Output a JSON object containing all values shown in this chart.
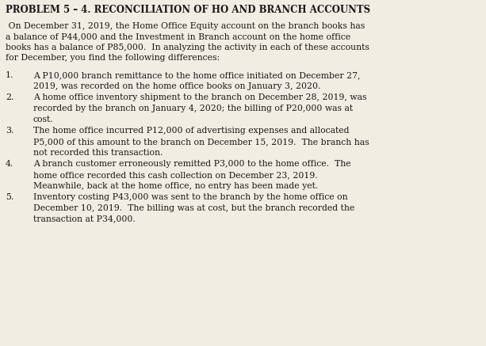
{
  "title": "PROBLEM 5 – 4. RECONCILIATION OF HO AND BRANCH ACCOUNTS",
  "background_color": "#f2ede3",
  "text_color": "#1a1a1a",
  "figsize": [
    6.13,
    4.37
  ],
  "dpi": 100,
  "title_fontsize": 8.5,
  "body_fontsize": 7.8,
  "intro_lines": [
    " On December 31, 2019, the Home Office Equity account on the branch books has",
    "a balance of P44,000 and the Investment in Branch account on the home office",
    "books has a balance of P85,000.  In analyzing the activity in each of these accounts",
    "for December, you find the following differences:"
  ],
  "items": [
    {
      "num": "1.",
      "lines": [
        "A P10,000 branch remittance to the home office initiated on December 27,",
        "2019, was recorded on the home office books on January 3, 2020."
      ]
    },
    {
      "num": "2.",
      "lines": [
        "A home office inventory shipment to the branch on December 28, 2019, was",
        "recorded by the branch on January 4, 2020; the billing of P20,000 was at",
        "cost."
      ]
    },
    {
      "num": "3.",
      "lines": [
        "The home office incurred P12,000 of advertising expenses and allocated",
        "P5,000 of this amount to the branch on December 15, 2019.  The branch has",
        "not recorded this transaction."
      ]
    },
    {
      "num": "4.",
      "lines": [
        "A branch customer erroneously remitted P3,000 to the home office.  The",
        "home office recorded this cash collection on December 23, 2019.",
        "Meanwhile, back at the home office, no entry has been made yet."
      ]
    },
    {
      "num": "5.",
      "lines": [
        "Inventory costing P43,000 was sent to the branch by the home office on",
        "December 10, 2019.  The billing was at cost, but the branch recorded the",
        "transaction at P34,000."
      ]
    }
  ]
}
